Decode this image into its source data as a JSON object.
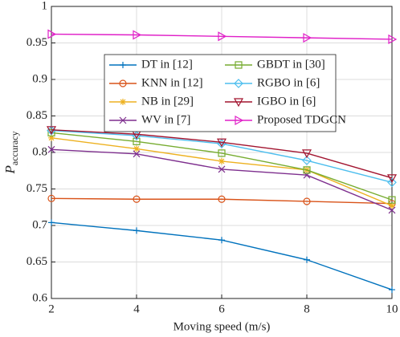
{
  "chart_data": {
    "type": "line",
    "xlabel": "Moving speed (m/s)",
    "ylabel": "P",
    "ylabel_subscript": "accuracy",
    "x": [
      2,
      4,
      6,
      8,
      10
    ],
    "series": [
      {
        "name": "DT in [12]",
        "color": "#0072bd",
        "marker": "plus",
        "values": [
          0.704,
          0.693,
          0.68,
          0.653,
          0.612
        ]
      },
      {
        "name": "KNN in [12]",
        "color": "#d95319",
        "marker": "circle",
        "values": [
          0.737,
          0.736,
          0.736,
          0.733,
          0.73
        ]
      },
      {
        "name": "NB in [29]",
        "color": "#edb120",
        "marker": "star",
        "values": [
          0.82,
          0.805,
          0.788,
          0.776,
          0.727
        ]
      },
      {
        "name": "WV in [7]",
        "color": "#7e2f8e",
        "marker": "cross",
        "values": [
          0.804,
          0.798,
          0.777,
          0.769,
          0.721
        ]
      },
      {
        "name": "GBDT in [30]",
        "color": "#77ac30",
        "marker": "square",
        "values": [
          0.827,
          0.815,
          0.799,
          0.776,
          0.735
        ]
      },
      {
        "name": "RGBO in [6]",
        "color": "#4dbeee",
        "marker": "diamond",
        "values": [
          0.83,
          0.823,
          0.812,
          0.789,
          0.759
        ]
      },
      {
        "name": "IGBO in [6]",
        "color": "#a2142f",
        "marker": "triangle-down",
        "values": [
          0.831,
          0.825,
          0.814,
          0.799,
          0.765
        ]
      },
      {
        "name": "Proposed TDGCN",
        "color": "#e020c8",
        "marker": "triangle-right",
        "values": [
          0.962,
          0.961,
          0.959,
          0.957,
          0.955
        ]
      }
    ],
    "xlim": [
      2,
      10
    ],
    "xticks": [
      2,
      4,
      6,
      8,
      10
    ],
    "ylim": [
      0.6,
      1
    ],
    "yticks": [
      0.6,
      0.65,
      0.7,
      0.75,
      0.8,
      0.85,
      0.9,
      0.95,
      1
    ],
    "grid": true,
    "legend": "upper-center"
  }
}
